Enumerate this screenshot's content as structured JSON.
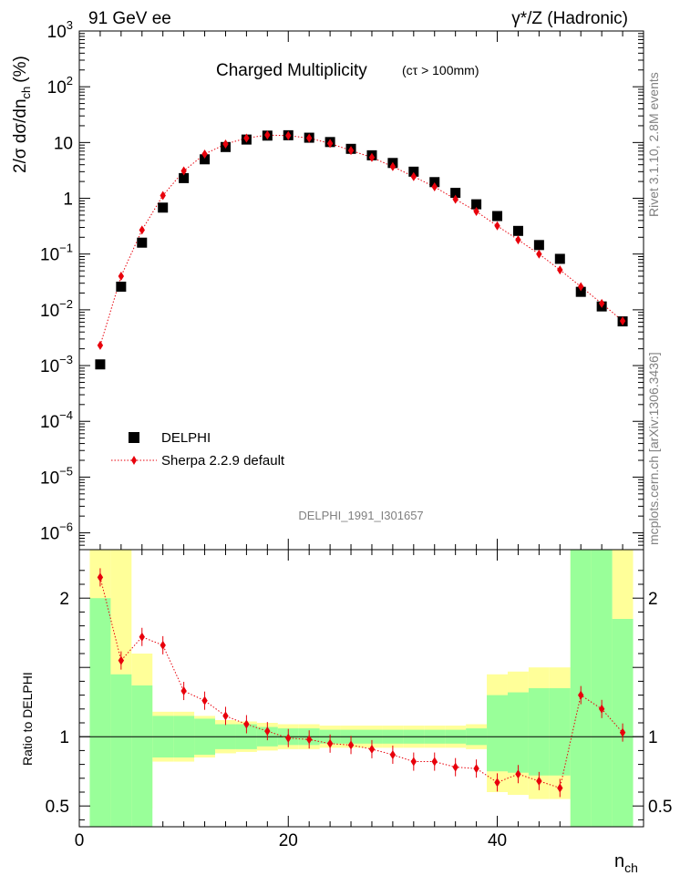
{
  "header": {
    "left": "91 GeV ee",
    "right": "γ*/Z (Hadronic)"
  },
  "main_title": "Charged Multiplicity",
  "main_title_note": "(cτ > 100mm)",
  "analysis_id": "DELPHI_1991_I301657",
  "side_text_top": "Rivet 3.1.10,  2.8M events",
  "side_text_bottom": "mcplots.cern.ch [arXiv:1306.3436]",
  "legend": {
    "data_label": "DELPHI",
    "mc_label": "Sherpa 2.2.9 default"
  },
  "colors": {
    "data": "#000000",
    "mc": "#e8000b",
    "band_inner": "#99ff99",
    "band_outer": "#ffff99"
  },
  "chart_data": {
    "type": "scatter",
    "x_label_main": "n",
    "x_label_sub": "ch",
    "y_label": "2/σ dσ/dn_ch (%)",
    "y_label_main": "2/σ dσ/dn",
    "y_label_sub": "ch",
    "y_label_unit": "(%)",
    "xlim": [
      0,
      54
    ],
    "ylim": [
      5e-07,
      1000
    ],
    "y_scale": "log",
    "y_ticks": [
      {
        "v": 1e-06,
        "base": "10",
        "exp": "−6"
      },
      {
        "v": 1e-05,
        "base": "10",
        "exp": "−5"
      },
      {
        "v": 0.0001,
        "base": "10",
        "exp": "−4"
      },
      {
        "v": 0.001,
        "base": "10",
        "exp": "−3"
      },
      {
        "v": 0.01,
        "base": "10",
        "exp": "−2"
      },
      {
        "v": 0.1,
        "base": "10",
        "exp": "−1"
      },
      {
        "v": 1,
        "base": "1",
        "exp": ""
      },
      {
        "v": 10,
        "base": "10",
        "exp": ""
      },
      {
        "v": 100,
        "base": "10",
        "exp": "2"
      },
      {
        "v": 1000,
        "base": "10",
        "exp": "3"
      }
    ],
    "x_ticks": [
      0,
      20,
      40
    ],
    "x_tick_labels": [
      "0",
      "20",
      "40"
    ],
    "bin_edges": [
      1,
      3,
      5,
      7,
      9,
      11,
      13,
      15,
      17,
      19,
      21,
      23,
      25,
      27,
      29,
      31,
      33,
      35,
      37,
      39,
      41,
      43,
      45,
      47,
      49,
      51,
      53
    ],
    "x": [
      2,
      4,
      6,
      8,
      10,
      12,
      14,
      16,
      18,
      20,
      22,
      24,
      26,
      28,
      30,
      32,
      34,
      36,
      38,
      40,
      42,
      44,
      46,
      48,
      50,
      52
    ],
    "series": [
      {
        "name": "DELPHI",
        "values": [
          0.00105,
          0.026,
          0.16,
          0.68,
          2.3,
          5.0,
          8.3,
          11.3,
          13.3,
          13.5,
          12.2,
          10.2,
          7.7,
          5.9,
          4.3,
          3.0,
          1.95,
          1.25,
          0.78,
          0.48,
          0.26,
          0.145,
          0.082,
          0.021,
          0.0115,
          0.0062
        ]
      },
      {
        "name": "Sherpa 2.2.9 default",
        "values": [
          0.0023,
          0.04,
          0.27,
          1.12,
          3.1,
          6.2,
          9.4,
          12.0,
          13.6,
          13.3,
          12.0,
          9.6,
          7.2,
          5.4,
          3.7,
          2.45,
          1.6,
          0.96,
          0.58,
          0.32,
          0.18,
          0.1,
          0.052,
          0.026,
          0.013,
          0.0063
        ]
      }
    ],
    "ratio": {
      "y_label": "Ratio to DELPHI",
      "ylim": [
        0.35,
        2.35
      ],
      "y_ticks": [
        0.5,
        1,
        2
      ],
      "y_tick_labels": [
        "0.5",
        "1",
        "2"
      ],
      "values": [
        2.15,
        1.55,
        1.72,
        1.66,
        1.33,
        1.26,
        1.15,
        1.09,
        1.04,
        0.99,
        0.98,
        0.95,
        0.94,
        0.91,
        0.87,
        0.82,
        0.82,
        0.78,
        0.77,
        0.67,
        0.73,
        0.68,
        0.63,
        1.3,
        1.2,
        1.03
      ],
      "band_inner": [
        [
          0.35,
          2.0
        ],
        [
          0.35,
          1.45
        ],
        [
          0.35,
          1.37
        ],
        [
          0.85,
          1.15
        ],
        [
          0.85,
          1.15
        ],
        [
          0.87,
          1.13
        ],
        [
          0.91,
          1.09
        ],
        [
          0.91,
          1.09
        ],
        [
          0.93,
          1.07
        ],
        [
          0.94,
          1.06
        ],
        [
          0.94,
          1.06
        ],
        [
          0.95,
          1.05
        ],
        [
          0.95,
          1.05
        ],
        [
          0.95,
          1.05
        ],
        [
          0.95,
          1.05
        ],
        [
          0.95,
          1.05
        ],
        [
          0.95,
          1.05
        ],
        [
          0.95,
          1.05
        ],
        [
          0.94,
          1.06
        ],
        [
          0.75,
          1.3
        ],
        [
          0.74,
          1.32
        ],
        [
          0.72,
          1.35
        ],
        [
          0.72,
          1.35
        ],
        [
          0.35,
          2.35
        ],
        [
          0.35,
          2.35
        ],
        [
          0.35,
          1.85
        ]
      ],
      "band_outer": [
        [
          0.35,
          2.35
        ],
        [
          0.35,
          2.35
        ],
        [
          0.48,
          1.6
        ],
        [
          0.82,
          1.18
        ],
        [
          0.82,
          1.18
        ],
        [
          0.85,
          1.15
        ],
        [
          0.88,
          1.12
        ],
        [
          0.89,
          1.11
        ],
        [
          0.9,
          1.1
        ],
        [
          0.91,
          1.09
        ],
        [
          0.91,
          1.09
        ],
        [
          0.92,
          1.08
        ],
        [
          0.92,
          1.08
        ],
        [
          0.92,
          1.08
        ],
        [
          0.92,
          1.08
        ],
        [
          0.92,
          1.08
        ],
        [
          0.92,
          1.08
        ],
        [
          0.92,
          1.08
        ],
        [
          0.91,
          1.09
        ],
        [
          0.6,
          1.45
        ],
        [
          0.58,
          1.47
        ],
        [
          0.55,
          1.5
        ],
        [
          0.55,
          1.5
        ],
        [
          0.35,
          2.35
        ],
        [
          0.35,
          2.35
        ],
        [
          0.35,
          2.35
        ]
      ]
    }
  }
}
